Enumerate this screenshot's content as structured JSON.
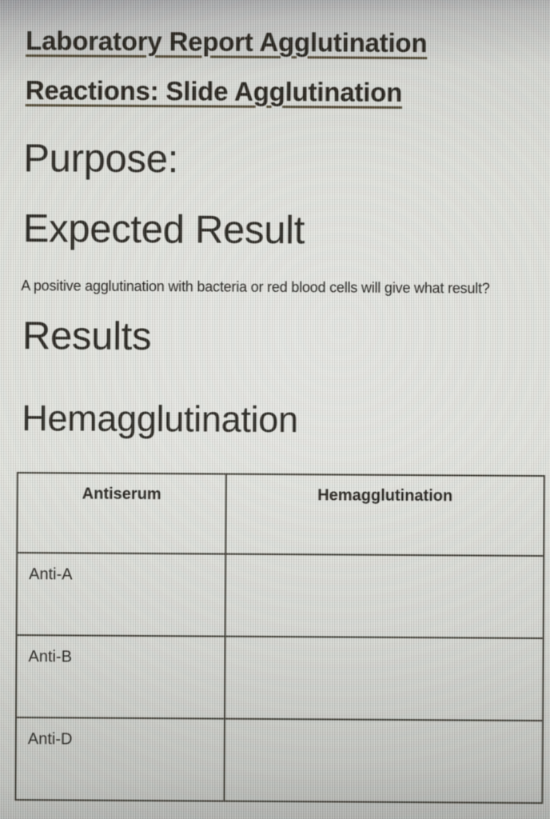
{
  "document": {
    "title_lines": [
      "Laboratory Report Agglutination",
      "Reactions: Slide Agglutination"
    ],
    "headings": {
      "purpose": "Purpose:",
      "expected_result": "Expected Result",
      "results": "Results",
      "hemagglutination": "Hemagglutination"
    },
    "expected_result_question": "A positive agglutination with bacteria or red blood cells will give what result?"
  },
  "results_table": {
    "columns": [
      "Antiserum",
      "Hemagglutination"
    ],
    "rows": [
      {
        "antiserum": "Anti-A",
        "hemagglutination": ""
      },
      {
        "antiserum": "Anti-B",
        "hemagglutination": ""
      },
      {
        "antiserum": "Anti-D",
        "hemagglutination": ""
      }
    ]
  },
  "colors": {
    "text": "#23211b",
    "title_underline": "#4f4630",
    "table_border": "#39372e",
    "background_center": "#dddfd8",
    "background_edge": "#96979a"
  }
}
